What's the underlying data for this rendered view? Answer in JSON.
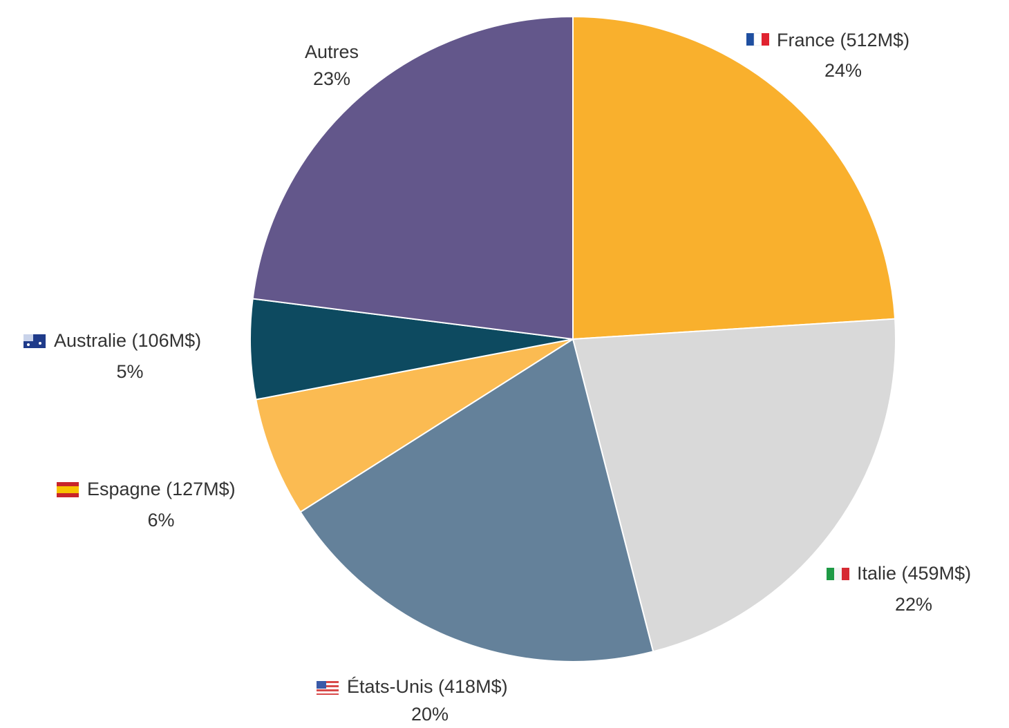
{
  "chart_data": {
    "type": "pie",
    "categories": [
      "France (512M$)",
      "Italie (459M$)",
      "États-Unis (418M$)",
      "Espagne (127M$)",
      "Australie (106M$)",
      "Autres"
    ],
    "values": [
      24,
      22,
      20,
      6,
      5,
      23
    ],
    "value_labels": [
      "24%",
      "22%",
      "20%",
      "6%",
      "5%",
      "23%"
    ],
    "colors": [
      "#f9b02d",
      "#d9d9d9",
      "#64819a",
      "#fbbb52",
      "#0d4a60",
      "#63578b"
    ]
  }
}
